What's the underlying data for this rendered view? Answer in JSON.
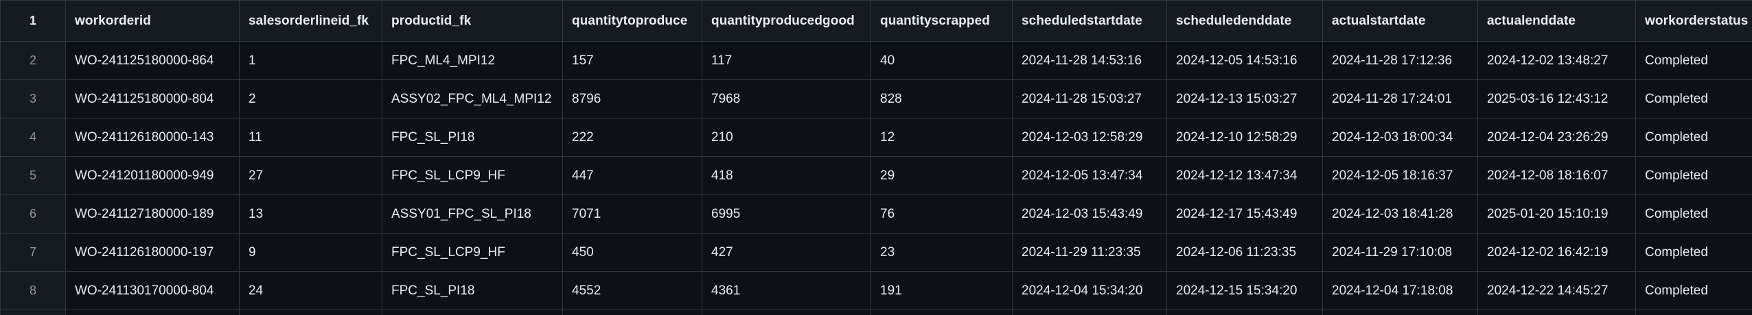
{
  "grid": {
    "corner_label": "1",
    "columns": [
      "workorderid",
      "salesorderlineid_fk",
      "productid_fk",
      "quantitytoproduce",
      "quantityproducedgood",
      "quantityscrapped",
      "scheduledstartdate",
      "scheduledenddate",
      "actualstartdate",
      "actualenddate",
      "workorderstatus"
    ],
    "rows": [
      {
        "num": "2",
        "cells": [
          "WO-241125180000-864",
          "1",
          "FPC_ML4_MPI12",
          "157",
          "117",
          "40",
          "2024-11-28 14:53:16",
          "2024-12-05 14:53:16",
          "2024-11-28 17:12:36",
          "2024-12-02 13:48:27",
          "Completed"
        ]
      },
      {
        "num": "3",
        "cells": [
          "WO-241125180000-804",
          "2",
          "ASSY02_FPC_ML4_MPI12",
          "8796",
          "7968",
          "828",
          "2024-11-28 15:03:27",
          "2024-12-13 15:03:27",
          "2024-11-28 17:24:01",
          "2025-03-16 12:43:12",
          "Completed"
        ]
      },
      {
        "num": "4",
        "cells": [
          "WO-241126180000-143",
          "11",
          "FPC_SL_PI18",
          "222",
          "210",
          "12",
          "2024-12-03 12:58:29",
          "2024-12-10 12:58:29",
          "2024-12-03 18:00:34",
          "2024-12-04 23:26:29",
          "Completed"
        ]
      },
      {
        "num": "5",
        "cells": [
          "WO-241201180000-949",
          "27",
          "FPC_SL_LCP9_HF",
          "447",
          "418",
          "29",
          "2024-12-05 13:47:34",
          "2024-12-12 13:47:34",
          "2024-12-05 18:16:37",
          "2024-12-08 18:16:07",
          "Completed"
        ]
      },
      {
        "num": "6",
        "cells": [
          "WO-241127180000-189",
          "13",
          "ASSY01_FPC_SL_PI18",
          "7071",
          "6995",
          "76",
          "2024-12-03 15:43:49",
          "2024-12-17 15:43:49",
          "2024-12-03 18:41:28",
          "2025-01-20 15:10:19",
          "Completed"
        ]
      },
      {
        "num": "7",
        "cells": [
          "WO-241126180000-197",
          "9",
          "FPC_SL_LCP9_HF",
          "450",
          "427",
          "23",
          "2024-11-29 11:23:35",
          "2024-12-06 11:23:35",
          "2024-11-29 17:10:08",
          "2024-12-02 16:42:19",
          "Completed"
        ]
      },
      {
        "num": "8",
        "cells": [
          "WO-241130170000-804",
          "24",
          "FPC_SL_PI18",
          "4552",
          "4361",
          "191",
          "2024-12-04 15:34:20",
          "2024-12-15 15:34:20",
          "2024-12-04 17:18:08",
          "2024-12-22 14:45:27",
          "Completed"
        ]
      },
      {
        "num": "",
        "cells": [
          "",
          "",
          "",
          "",
          "",
          "",
          "",
          "",
          "",
          "",
          ""
        ]
      }
    ]
  }
}
